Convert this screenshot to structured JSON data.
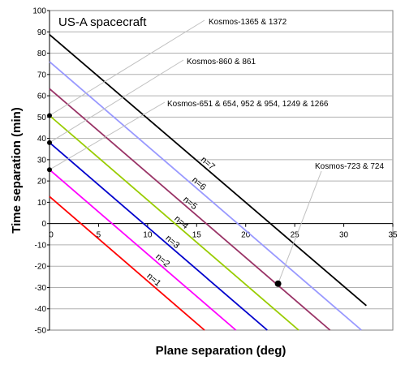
{
  "chart_data": {
    "type": "line",
    "title": "US-A spacecraft",
    "xlabel": "Plane separation (deg)",
    "ylabel": "Time separation (min)",
    "xlim": [
      0,
      35
    ],
    "ylim": [
      -50,
      100
    ],
    "x_ticks": [
      0,
      5,
      10,
      15,
      20,
      25,
      30,
      35
    ],
    "y_ticks": [
      -50,
      -40,
      -30,
      -20,
      -10,
      0,
      10,
      20,
      30,
      40,
      50,
      60,
      70,
      80,
      90,
      100
    ],
    "grid": "horizontal",
    "series": [
      {
        "name": "n=1",
        "color": "#ff0000",
        "x": [
          0,
          15.8
        ],
        "y": [
          12.7,
          -50
        ]
      },
      {
        "name": "n=2",
        "color": "#ff00ff",
        "x": [
          0,
          19.0
        ],
        "y": [
          25.3,
          -50
        ]
      },
      {
        "name": "n=3",
        "color": "#0000cc",
        "x": [
          0,
          22.2
        ],
        "y": [
          38.0,
          -50
        ]
      },
      {
        "name": "n=4",
        "color": "#99cc00",
        "x": [
          0,
          25.4
        ],
        "y": [
          50.7,
          -50
        ]
      },
      {
        "name": "n=5",
        "color": "#993366",
        "x": [
          0,
          28.6
        ],
        "y": [
          63.3,
          -50
        ]
      },
      {
        "name": "n=6",
        "color": "#9999ff",
        "x": [
          0,
          31.8
        ],
        "y": [
          76.0,
          -50
        ]
      },
      {
        "name": "n=7",
        "color": "#000000",
        "x": [
          0,
          32.3
        ],
        "y": [
          88.7,
          -38.5
        ]
      }
    ],
    "points": [
      {
        "x": 0,
        "y": 25.3
      },
      {
        "x": 0,
        "y": 38.0
      },
      {
        "x": 0,
        "y": 50.7
      },
      {
        "x": 23.3,
        "y": -28.2
      }
    ],
    "annotations": [
      {
        "text": "Kosmos-1365 & 1372",
        "target": [
          0,
          50.7
        ]
      },
      {
        "text": "Kosmos-860 & 861",
        "target": [
          0,
          38.0
        ]
      },
      {
        "text": "Kosmos-651 & 654, 952 & 954, 1249 & 1266",
        "target": [
          0,
          25.3
        ]
      },
      {
        "text": "Kosmos-723 & 724",
        "target": [
          23.3,
          -28.2
        ]
      }
    ]
  }
}
